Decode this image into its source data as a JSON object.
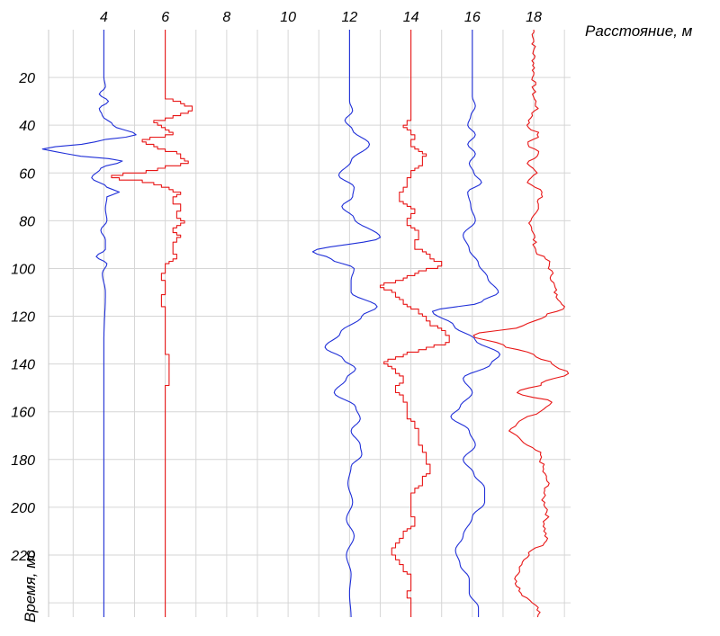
{
  "chart_data": {
    "type": "line",
    "title": "",
    "xlabel": "Расстояние, м",
    "ylabel": "Время, мс",
    "x_ticks": [
      4,
      6,
      8,
      10,
      12,
      14,
      16,
      18
    ],
    "y_ticks": [
      20,
      40,
      60,
      80,
      100,
      120,
      140,
      160,
      180,
      200,
      220
    ],
    "xlim": [
      2.2,
      19.2
    ],
    "ylim": [
      0,
      246
    ],
    "y_inverted": true,
    "x_axis_position": "top",
    "grid": true,
    "trace_scale_m": 1.0,
    "series": [
      {
        "baseline": 4,
        "color": "#1f2fd8",
        "style": "smooth",
        "points": [
          [
            0,
            0
          ],
          [
            20,
            0
          ],
          [
            24,
            0.05
          ],
          [
            27,
            -0.15
          ],
          [
            30,
            0.15
          ],
          [
            33,
            -0.15
          ],
          [
            36,
            -0.05
          ],
          [
            40,
            0.3
          ],
          [
            44,
            1.05
          ],
          [
            47,
            -0.3
          ],
          [
            50,
            -2.0
          ],
          [
            52,
            -1.2
          ],
          [
            55,
            0.6
          ],
          [
            58,
            -0.1
          ],
          [
            62,
            -0.4
          ],
          [
            66,
            0.1
          ],
          [
            68,
            0.5
          ],
          [
            70,
            0.1
          ],
          [
            75,
            0.05
          ],
          [
            80,
            0.1
          ],
          [
            84,
            -0.1
          ],
          [
            88,
            0.05
          ],
          [
            92,
            0.05
          ],
          [
            95,
            -0.25
          ],
          [
            98,
            0.1
          ],
          [
            102,
            -0.05
          ],
          [
            110,
            0.05
          ],
          [
            130,
            0
          ],
          [
            246,
            0
          ]
        ]
      },
      {
        "baseline": 6,
        "color": "#e81616",
        "style": "step",
        "points": [
          [
            0,
            0
          ],
          [
            28,
            0
          ],
          [
            30,
            0.55
          ],
          [
            33,
            0.9
          ],
          [
            36,
            0.3
          ],
          [
            38,
            -0.4
          ],
          [
            41,
            -0.05
          ],
          [
            43,
            0.3
          ],
          [
            46,
            -0.8
          ],
          [
            49,
            -0.2
          ],
          [
            52,
            0.5
          ],
          [
            55,
            0.7
          ],
          [
            58,
            -0.3
          ],
          [
            61,
            -1.8
          ],
          [
            64,
            -0.4
          ],
          [
            66,
            0.1
          ],
          [
            68,
            0.45
          ],
          [
            71,
            0.2
          ],
          [
            74,
            0.55
          ],
          [
            77,
            0.35
          ],
          [
            80,
            0.6
          ],
          [
            83,
            0.25
          ],
          [
            86,
            0.45
          ],
          [
            90,
            0.2
          ],
          [
            95,
            0.35
          ],
          [
            98,
            0.05
          ],
          [
            103,
            -0.1
          ],
          [
            108,
            0.05
          ],
          [
            113,
            -0.15
          ],
          [
            118,
            0.05
          ],
          [
            130,
            0
          ],
          [
            140,
            0.1
          ],
          [
            160,
            0
          ],
          [
            246,
            0
          ]
        ]
      },
      {
        "baseline": 12,
        "color": "#1f2fd8",
        "style": "smooth",
        "points": [
          [
            0,
            0
          ],
          [
            30,
            0
          ],
          [
            34,
            0.1
          ],
          [
            38,
            -0.15
          ],
          [
            42,
            0.1
          ],
          [
            48,
            0.65
          ],
          [
            55,
            0.05
          ],
          [
            61,
            -0.35
          ],
          [
            66,
            0.15
          ],
          [
            70,
            0.1
          ],
          [
            74,
            -0.25
          ],
          [
            79,
            0.15
          ],
          [
            87,
            1.0
          ],
          [
            93,
            -1.2
          ],
          [
            96,
            -0.6
          ],
          [
            100,
            0.15
          ],
          [
            105,
            0.05
          ],
          [
            110,
            0.05
          ],
          [
            116,
            0.9
          ],
          [
            120,
            0.4
          ],
          [
            127,
            -0.3
          ],
          [
            133,
            -0.8
          ],
          [
            138,
            -0.2
          ],
          [
            142,
            0.2
          ],
          [
            146,
            -0.1
          ],
          [
            152,
            -0.5
          ],
          [
            158,
            0.2
          ],
          [
            163,
            0.35
          ],
          [
            168,
            0.05
          ],
          [
            174,
            0.35
          ],
          [
            178,
            0.4
          ],
          [
            183,
            0.05
          ],
          [
            190,
            -0.05
          ],
          [
            198,
            0.1
          ],
          [
            205,
            -0.1
          ],
          [
            212,
            0.15
          ],
          [
            220,
            -0.1
          ],
          [
            228,
            0.05
          ],
          [
            236,
            0.0
          ],
          [
            246,
            0.05
          ]
        ]
      },
      {
        "baseline": 14,
        "color": "#e81616",
        "style": "step",
        "points": [
          [
            0,
            0
          ],
          [
            36,
            0
          ],
          [
            40,
            -0.2
          ],
          [
            44,
            0.1
          ],
          [
            47,
            -0.05
          ],
          [
            52,
            0.45
          ],
          [
            56,
            0.35
          ],
          [
            60,
            0.0
          ],
          [
            64,
            -0.15
          ],
          [
            70,
            -0.4
          ],
          [
            75,
            0.1
          ],
          [
            80,
            -0.1
          ],
          [
            85,
            0.25
          ],
          [
            90,
            0.1
          ],
          [
            94,
            0.6
          ],
          [
            98,
            1.0
          ],
          [
            101,
            0.3
          ],
          [
            104,
            -0.3
          ],
          [
            107,
            -1.0
          ],
          [
            110,
            -0.5
          ],
          [
            114,
            -0.2
          ],
          [
            118,
            0.3
          ],
          [
            122,
            0.6
          ],
          [
            126,
            1.1
          ],
          [
            130,
            1.3
          ],
          [
            133,
            0.5
          ],
          [
            136,
            -0.3
          ],
          [
            139,
            -0.9
          ],
          [
            142,
            -0.5
          ],
          [
            146,
            -0.25
          ],
          [
            150,
            -0.5
          ],
          [
            154,
            -0.2
          ],
          [
            160,
            -0.15
          ],
          [
            167,
            0.2
          ],
          [
            172,
            0.3
          ],
          [
            178,
            0.45
          ],
          [
            184,
            0.6
          ],
          [
            188,
            0.4
          ],
          [
            194,
            0.05
          ],
          [
            200,
            -0.05
          ],
          [
            206,
            0.1
          ],
          [
            212,
            -0.3
          ],
          [
            218,
            -0.6
          ],
          [
            224,
            -0.3
          ],
          [
            230,
            0.05
          ],
          [
            236,
            -0.1
          ],
          [
            242,
            0.05
          ],
          [
            246,
            0
          ]
        ]
      },
      {
        "baseline": 16,
        "color": "#1f2fd8",
        "style": "smooth",
        "points": [
          [
            0,
            0
          ],
          [
            28,
            0
          ],
          [
            32,
            0.1
          ],
          [
            36,
            -0.05
          ],
          [
            40,
            -0.15
          ],
          [
            44,
            0.1
          ],
          [
            48,
            -0.15
          ],
          [
            52,
            0.1
          ],
          [
            56,
            -0.1
          ],
          [
            60,
            0.05
          ],
          [
            64,
            0.3
          ],
          [
            68,
            -0.15
          ],
          [
            74,
            -0.05
          ],
          [
            80,
            0.1
          ],
          [
            86,
            -0.3
          ],
          [
            92,
            -0.1
          ],
          [
            98,
            0.2
          ],
          [
            104,
            0.5
          ],
          [
            110,
            0.85
          ],
          [
            114,
            0.3
          ],
          [
            118,
            -1.3
          ],
          [
            124,
            -0.6
          ],
          [
            130,
            0.1
          ],
          [
            136,
            0.9
          ],
          [
            140,
            0.6
          ],
          [
            146,
            -0.3
          ],
          [
            152,
            0.0
          ],
          [
            158,
            -0.4
          ],
          [
            162,
            -0.7
          ],
          [
            168,
            -0.1
          ],
          [
            174,
            0.1
          ],
          [
            180,
            -0.3
          ],
          [
            186,
            0.05
          ],
          [
            192,
            0.4
          ],
          [
            198,
            0.4
          ],
          [
            204,
            0.0
          ],
          [
            212,
            -0.3
          ],
          [
            218,
            -0.55
          ],
          [
            224,
            -0.4
          ],
          [
            230,
            -0.1
          ],
          [
            236,
            -0.1
          ],
          [
            242,
            0.2
          ],
          [
            246,
            0.2
          ]
        ]
      },
      {
        "baseline": 18,
        "color": "#e81616",
        "style": "jagged",
        "points": [
          [
            0,
            0
          ],
          [
            28,
            0
          ],
          [
            32,
            0.1
          ],
          [
            36,
            -0.05
          ],
          [
            40,
            -0.2
          ],
          [
            44,
            0.15
          ],
          [
            48,
            -0.2
          ],
          [
            52,
            0.2
          ],
          [
            56,
            -0.15
          ],
          [
            60,
            0.05
          ],
          [
            64,
            -0.2
          ],
          [
            68,
            0.3
          ],
          [
            74,
            0.1
          ],
          [
            80,
            -0.1
          ],
          [
            86,
            0.0
          ],
          [
            92,
            0.05
          ],
          [
            98,
            0.5
          ],
          [
            104,
            0.6
          ],
          [
            110,
            0.7
          ],
          [
            116,
            1.0
          ],
          [
            120,
            0.4
          ],
          [
            124,
            -0.3
          ],
          [
            128,
            -2.0
          ],
          [
            132,
            -1.0
          ],
          [
            136,
            0.0
          ],
          [
            140,
            0.6
          ],
          [
            144,
            1.1
          ],
          [
            148,
            0.3
          ],
          [
            152,
            -0.5
          ],
          [
            156,
            0.6
          ],
          [
            160,
            0.2
          ],
          [
            164,
            -0.5
          ],
          [
            168,
            -0.8
          ],
          [
            172,
            -0.4
          ],
          [
            178,
            0.2
          ],
          [
            184,
            0.3
          ],
          [
            190,
            0.45
          ],
          [
            196,
            0.3
          ],
          [
            202,
            0.45
          ],
          [
            208,
            0.35
          ],
          [
            214,
            0.4
          ],
          [
            220,
            -0.2
          ],
          [
            226,
            -0.45
          ],
          [
            232,
            -0.6
          ],
          [
            236,
            -0.4
          ],
          [
            240,
            0.0
          ],
          [
            244,
            0.2
          ],
          [
            246,
            0.15
          ]
        ]
      }
    ]
  }
}
